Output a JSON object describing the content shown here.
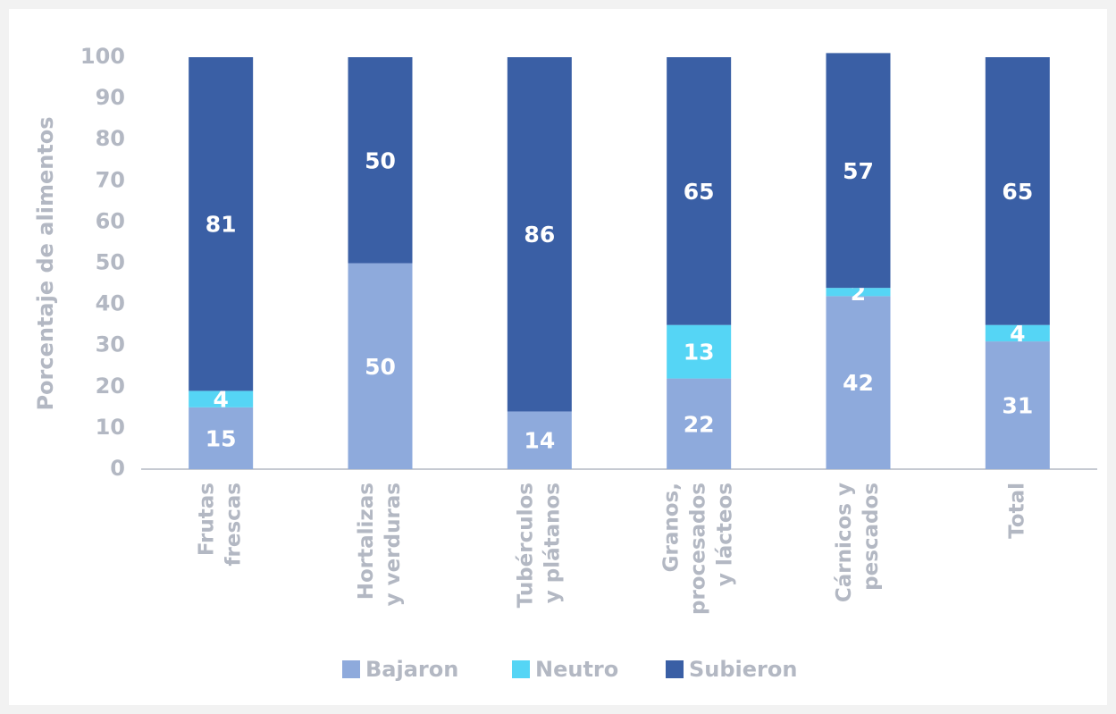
{
  "chart_data": {
    "type": "stacked_bar",
    "y_label": "Porcentaje de alimentos",
    "categories": [
      [
        "Frutas",
        "frescas"
      ],
      [
        "Hortalizas",
        "y verduras"
      ],
      [
        "Tubérculos",
        "y plátanos"
      ],
      [
        "Granos,",
        "procesados",
        "y lácteos"
      ],
      [
        "Cárnicos y",
        "pescados"
      ],
      [
        "Total"
      ]
    ],
    "series": [
      {
        "name": "Bajaron",
        "color": "#8eaadc",
        "values": [
          15,
          50,
          14,
          22,
          42,
          31
        ]
      },
      {
        "name": "Neutro",
        "color": "#55d5f5",
        "values": [
          4,
          0,
          0,
          13,
          2,
          4
        ]
      },
      {
        "name": "Subieron",
        "color": "#3a5fa5",
        "values": [
          81,
          50,
          86,
          65,
          57,
          65
        ]
      }
    ],
    "ylim": [
      0,
      100
    ],
    "yticks": [
      0,
      10,
      20,
      30,
      40,
      50,
      60,
      70,
      80,
      90,
      100
    ],
    "grid": false,
    "legend": "bottom"
  }
}
